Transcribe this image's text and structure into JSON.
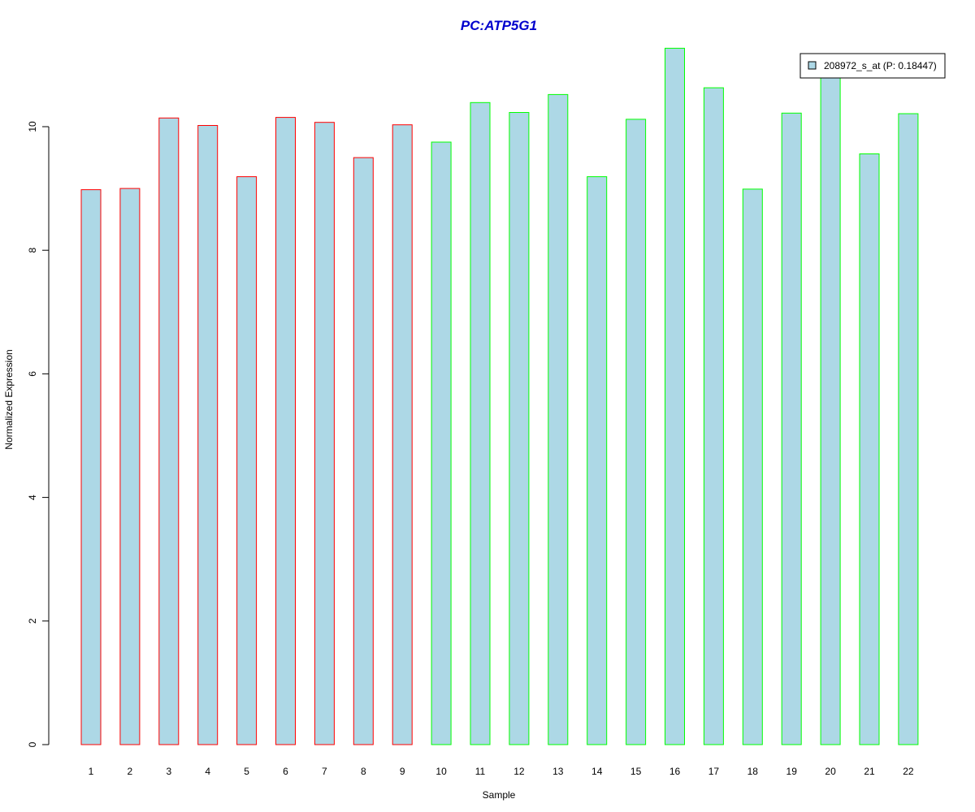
{
  "chart_data": {
    "type": "bar",
    "title": "PC:ATP5G1",
    "xlabel": "Sample",
    "ylabel": "Normalized Expression",
    "categories": [
      "1",
      "2",
      "3",
      "4",
      "5",
      "6",
      "7",
      "8",
      "9",
      "10",
      "11",
      "12",
      "13",
      "14",
      "15",
      "16",
      "17",
      "18",
      "19",
      "20",
      "21",
      "22"
    ],
    "series": [
      {
        "name": "208972_s_at (P: 0.18447)",
        "values": [
          8.98,
          9.0,
          10.14,
          10.02,
          9.19,
          10.15,
          10.07,
          9.5,
          10.03,
          9.75,
          10.39,
          10.23,
          10.52,
          9.19,
          10.12,
          11.27,
          10.63,
          8.99,
          10.22,
          11.0,
          9.56,
          10.21
        ]
      }
    ],
    "groups": [
      {
        "samples": [
          1,
          9
        ],
        "border_color": "#ff0000"
      },
      {
        "samples": [
          10,
          22
        ],
        "border_color": "#00ff00"
      }
    ],
    "yticks": [
      0,
      2,
      4,
      6,
      8,
      10
    ],
    "ylim": [
      0,
      11.27
    ],
    "grid": false,
    "legend_position": "top-right",
    "colors": {
      "bar_fill": "#add8e6",
      "title": "#0000cd"
    }
  }
}
